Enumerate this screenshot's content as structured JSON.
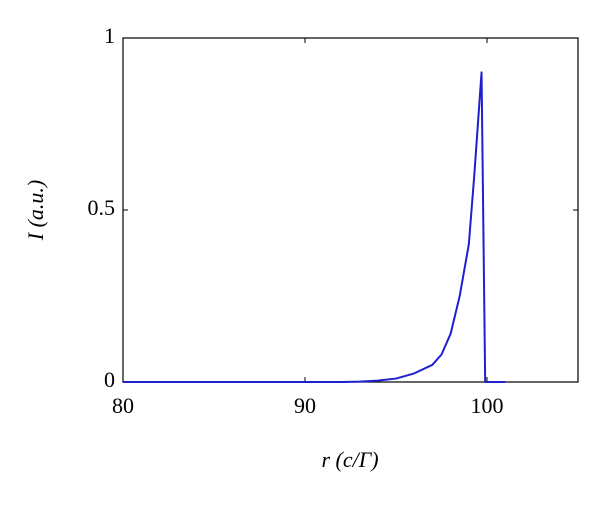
{
  "chart_data": {
    "type": "line",
    "xlabel": "r (c/Γ)",
    "ylabel": "I (a.u.)",
    "x": [
      80,
      90,
      92,
      93,
      94,
      95,
      96,
      97,
      97.5,
      98,
      98.5,
      99,
      99.3,
      99.7,
      99.9,
      101
    ],
    "series": [
      {
        "color": "#1f1fd0",
        "values": [
          0,
          0,
          0,
          0.001,
          0.004,
          0.01,
          0.025,
          0.05,
          0.08,
          0.14,
          0.25,
          0.4,
          0.6,
          0.9,
          0,
          0
        ]
      }
    ],
    "xlim": [
      80,
      105
    ],
    "ylim": [
      0,
      1
    ],
    "xticks": [
      80,
      90,
      100
    ],
    "yticks": [
      0,
      0.5,
      1
    ]
  }
}
